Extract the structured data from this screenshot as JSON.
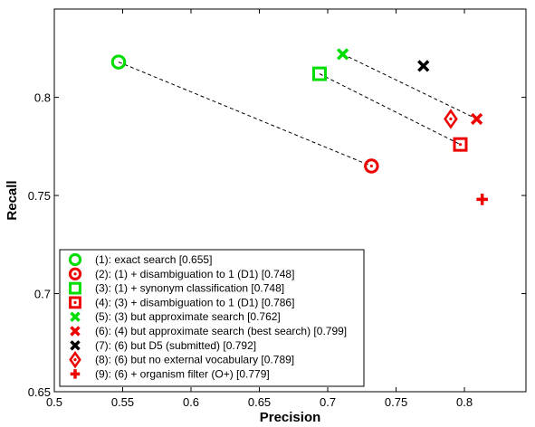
{
  "chart_data": {
    "type": "scatter",
    "xlabel": "Precision",
    "ylabel": "Recall",
    "xlim": [
      0.5,
      0.845
    ],
    "ylim": [
      0.65,
      0.845
    ],
    "x_ticks": [
      0.5,
      0.55,
      0.6,
      0.65,
      0.7,
      0.75,
      0.8
    ],
    "y_ticks": [
      0.65,
      0.7,
      0.75,
      0.8
    ],
    "x_tick_labels": [
      "0.5",
      "0.55",
      "0.6",
      "0.65",
      "0.7",
      "0.75",
      "0.8"
    ],
    "y_tick_labels": [
      "0.65",
      "0.7",
      "0.75",
      "0.8"
    ],
    "grid": false,
    "legend_position": "bottom-left",
    "points": [
      {
        "id": 1,
        "marker": "circle",
        "color": "#00dd00",
        "x": 0.547,
        "y": 0.818,
        "label": "(1): exact search [0.655]"
      },
      {
        "id": 2,
        "marker": "circle",
        "color": "#ee0000",
        "x": 0.732,
        "y": 0.765,
        "label": "(2): (1) + disambiguation to 1 (D1) [0.748]"
      },
      {
        "id": 3,
        "marker": "square",
        "color": "#00dd00",
        "x": 0.694,
        "y": 0.812,
        "label": "(3): (1) + synonym classification [0.748]"
      },
      {
        "id": 4,
        "marker": "square",
        "color": "#ee0000",
        "x": 0.797,
        "y": 0.776,
        "label": "(4): (3) + disambiguation to 1 (D1) [0.786]"
      },
      {
        "id": 5,
        "marker": "x",
        "color": "#00dd00",
        "x": 0.711,
        "y": 0.822,
        "label": "(5): (3) but approximate search [0.762]"
      },
      {
        "id": 6,
        "marker": "x",
        "color": "#ee0000",
        "x": 0.809,
        "y": 0.789,
        "label": "(6): (4) but approximate search (best search) [0.799]"
      },
      {
        "id": 7,
        "marker": "x",
        "color": "#000000",
        "x": 0.77,
        "y": 0.816,
        "label": "(7): (6) but D5 (submitted) [0.792]"
      },
      {
        "id": 8,
        "marker": "diamond",
        "color": "#ee0000",
        "x": 0.79,
        "y": 0.789,
        "label": "(8): (6) but no external vocabulary [0.789]"
      },
      {
        "id": 9,
        "marker": "plus",
        "color": "#ee0000",
        "x": 0.813,
        "y": 0.748,
        "label": "(9): (6) + organism filter (O+) [0.779]"
      }
    ],
    "connections": [
      [
        1,
        2
      ],
      [
        3,
        4
      ],
      [
        5,
        6
      ]
    ]
  }
}
